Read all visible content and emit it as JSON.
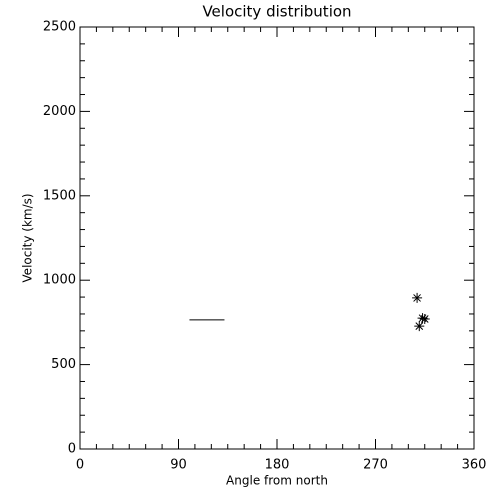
{
  "chart_data": {
    "type": "scatter",
    "title": "Velocity distribution",
    "x_label": "Angle from north",
    "y_label": "Velocity (km/s)",
    "xlim": [
      0,
      360
    ],
    "ylim": [
      0,
      2500
    ],
    "xticks": [
      0,
      90,
      180,
      270,
      360
    ],
    "yticks": [
      0,
      500,
      1000,
      1500,
      2000,
      2500
    ],
    "xminorticks": [
      15,
      30,
      45,
      60,
      75,
      105,
      120,
      135,
      150,
      165,
      195,
      210,
      225,
      240,
      255,
      285,
      300,
      315,
      330,
      345
    ],
    "yminorticks": [
      100,
      200,
      300,
      400,
      600,
      700,
      800,
      900,
      1100,
      1200,
      1300,
      1400,
      1600,
      1700,
      1800,
      1900,
      2100,
      2200,
      2300,
      2400
    ],
    "series": [
      {
        "style": "line",
        "color": "#000000",
        "x": [
          100,
          132
        ],
        "values": [
          765,
          765
        ]
      },
      {
        "style": "star",
        "color": "#000000",
        "x": [
          308,
          313,
          310,
          315
        ],
        "values": [
          895,
          775,
          728,
          770
        ]
      }
    ]
  }
}
